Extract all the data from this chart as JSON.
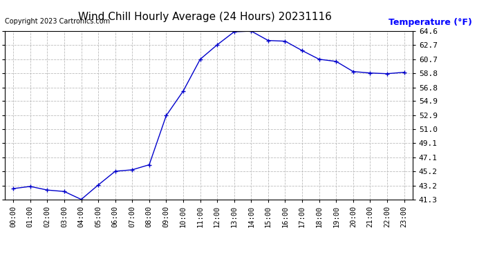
{
  "title": "Wind Chill Hourly Average (24 Hours) 20231116",
  "ylabel": "Temperature (°F)",
  "copyright": "Copyright 2023 Cartronics.com",
  "line_color": "#0000cc",
  "background_color": "#ffffff",
  "plot_bg_color": "#ffffff",
  "grid_color": "#bbbbbb",
  "hours": [
    0,
    1,
    2,
    3,
    4,
    5,
    6,
    7,
    8,
    9,
    10,
    11,
    12,
    13,
    14,
    15,
    16,
    17,
    18,
    19,
    20,
    21,
    22,
    23
  ],
  "values": [
    42.8,
    43.1,
    42.6,
    42.4,
    41.3,
    43.3,
    45.2,
    45.4,
    46.1,
    52.9,
    56.3,
    60.7,
    62.7,
    64.5,
    64.6,
    63.3,
    63.2,
    61.9,
    60.7,
    60.4,
    59.0,
    58.8,
    58.7,
    58.9
  ],
  "yticks": [
    41.3,
    43.2,
    45.2,
    47.1,
    49.1,
    51.0,
    52.9,
    54.9,
    56.8,
    58.8,
    60.7,
    62.7,
    64.6
  ],
  "ylim": [
    41.3,
    64.6
  ],
  "xlim": [
    -0.5,
    23.5
  ],
  "title_fontsize": 11,
  "copyright_fontsize": 7,
  "ylabel_fontsize": 9,
  "tick_fontsize": 7.5,
  "ytick_fontsize": 8
}
